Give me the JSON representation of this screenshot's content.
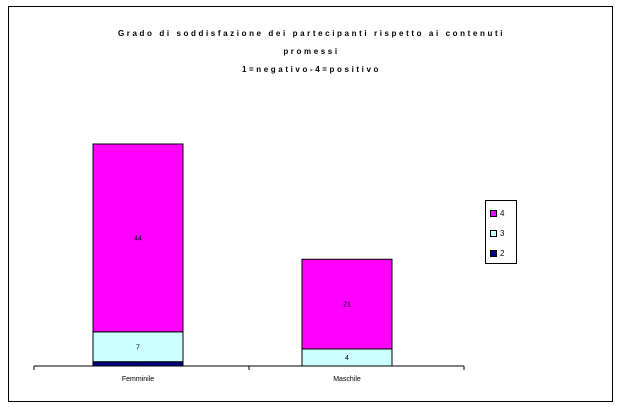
{
  "chart_data": {
    "type": "bar",
    "stacked": true,
    "title": "Grado di soddisfazione dei partecipanti rispetto ai contenuti promessi 1=negativo-4=positivo",
    "title_lines": [
      "Grado di soddisfazione dei partecipanti rispetto ai contenuti",
      "promessi",
      "1=negativo-4=positivo"
    ],
    "categories": [
      "Femminile",
      "Maschile"
    ],
    "series": [
      {
        "name": "2",
        "values": [
          1,
          0
        ],
        "color": "#000080"
      },
      {
        "name": "3",
        "values": [
          7,
          4
        ],
        "color": "#ccffff"
      },
      {
        "name": "4",
        "values": [
          44,
          21
        ],
        "color": "#ff00ff"
      }
    ],
    "xlabel": "",
    "ylabel": "",
    "ylim": [
      0,
      52
    ],
    "grid": false,
    "legend_position": "right",
    "legend_order": [
      "4",
      "3",
      "2"
    ]
  }
}
